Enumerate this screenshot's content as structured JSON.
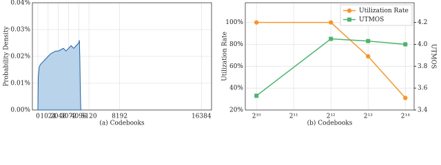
{
  "chart_data": [
    {
      "type": "area",
      "ylabel": "Probability Density",
      "xlabel": "(a) Codebooks",
      "x": [
        0,
        32,
        128,
        256,
        512,
        768,
        1024,
        1280,
        1536,
        1792,
        2048,
        2304,
        2560,
        2816,
        3072,
        3328,
        3584,
        3840,
        4096,
        4160,
        4200,
        4250,
        4300
      ],
      "series": [
        {
          "color": "#1f5f9e",
          "values": [
            0,
            0.012,
            0.016,
            0.017,
            0.018,
            0.019,
            0.02,
            0.021,
            0.0215,
            0.022,
            0.022,
            0.0225,
            0.023,
            0.022,
            0.023,
            0.024,
            0.023,
            0.024,
            0.025,
            0.026,
            0.02,
            0.008,
            0
          ]
        }
      ],
      "xlim": [
        -550,
        17400
      ],
      "xticks": [
        0,
        1024,
        2048,
        3072,
        4096,
        5120,
        8192,
        16384
      ],
      "ylim": [
        0,
        0.04
      ],
      "yticks": [
        {
          "value": 0,
          "label": "0.00%"
        },
        {
          "value": 0.01,
          "label": "0.01%"
        },
        {
          "value": 0.02,
          "label": "0.02%"
        },
        {
          "value": 0.03,
          "label": "0.03%"
        },
        {
          "value": 0.04,
          "label": "0.04%"
        }
      ],
      "grid": true
    },
    {
      "type": "line",
      "ylabel": "Utilization Rate",
      "y2label": "UTMOS",
      "xlabel": "(b) Codebooks",
      "log_x": 2,
      "x": [
        1024,
        4096,
        8192,
        16384
      ],
      "series": [
        {
          "name": "Utilization Rate",
          "color": "#f5962a",
          "marker": "circle",
          "values": [
            100,
            100,
            69,
            31
          ]
        },
        {
          "name": "UTMOS",
          "color": "#4cb36b",
          "marker": "square",
          "axis": "y2",
          "values": [
            3.53,
            4.05,
            4.03,
            4.0
          ]
        }
      ],
      "xlim": [
        832,
        19300
      ],
      "xticks": [
        {
          "value": 1024,
          "label": "2¹⁰"
        },
        {
          "value": 2048,
          "label": "2¹¹"
        },
        {
          "value": 4096,
          "label": "2¹²"
        },
        {
          "value": 8192,
          "label": "2¹³"
        },
        {
          "value": 16384,
          "label": "2¹⁴"
        }
      ],
      "ylim": [
        20,
        118
      ],
      "yticks": [
        {
          "value": 20,
          "label": "20%"
        },
        {
          "value": 40,
          "label": "40%"
        },
        {
          "value": 60,
          "label": "60%"
        },
        {
          "value": 80,
          "label": "80%"
        },
        {
          "value": 100,
          "label": "100%"
        }
      ],
      "y2lim": [
        3.4,
        4.38
      ],
      "y2ticks": [
        3.4,
        3.6,
        3.8,
        {
          "value": 4,
          "label": "4.0"
        },
        4.2
      ],
      "grid": true,
      "legend": "upper-right"
    }
  ]
}
